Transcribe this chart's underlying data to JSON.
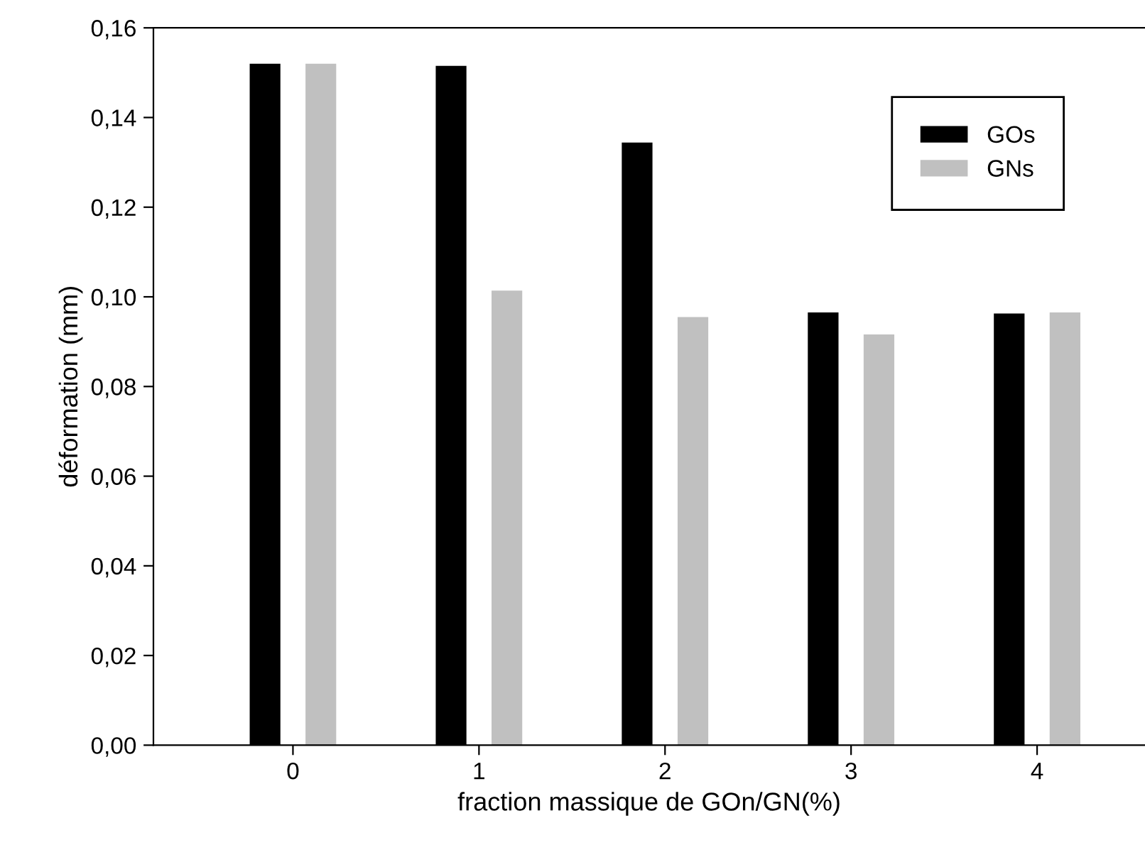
{
  "chart_data": {
    "type": "bar",
    "xlabel": "fraction massique de GOn/GN(%)",
    "ylabel": "déformation (mm)",
    "x": [
      0,
      1,
      2,
      3,
      4
    ],
    "series": [
      {
        "name": "GOs",
        "color": "#000000",
        "values": [
          0.152,
          0.1515,
          0.1344,
          0.0965,
          0.0963
        ]
      },
      {
        "name": "GNs",
        "color": "#c0c0c0",
        "values": [
          0.152,
          0.1014,
          0.0955,
          0.0916,
          0.0965
        ]
      }
    ],
    "xlim": [
      -0.75,
      4.58
    ],
    "xticks": [
      {
        "value": 0,
        "label": "0"
      },
      {
        "value": 1,
        "label": "1"
      },
      {
        "value": 2,
        "label": "2"
      },
      {
        "value": 3,
        "label": "3"
      },
      {
        "value": 4,
        "label": "4"
      }
    ],
    "ylim": [
      0,
      0.16
    ],
    "yticks": [
      {
        "value": 0,
        "label": "0,00"
      },
      {
        "value": 0.02,
        "label": "0,02"
      },
      {
        "value": 0.04,
        "label": "0,04"
      },
      {
        "value": 0.06,
        "label": "0,06"
      },
      {
        "value": 0.08,
        "label": "0,08"
      },
      {
        "value": 0.1,
        "label": "0,10"
      },
      {
        "value": 0.12,
        "label": "0,12"
      },
      {
        "value": 0.14,
        "label": "0,14"
      },
      {
        "value": 0.16,
        "label": "0,16"
      }
    ],
    "grid": false,
    "legend": "top right"
  }
}
